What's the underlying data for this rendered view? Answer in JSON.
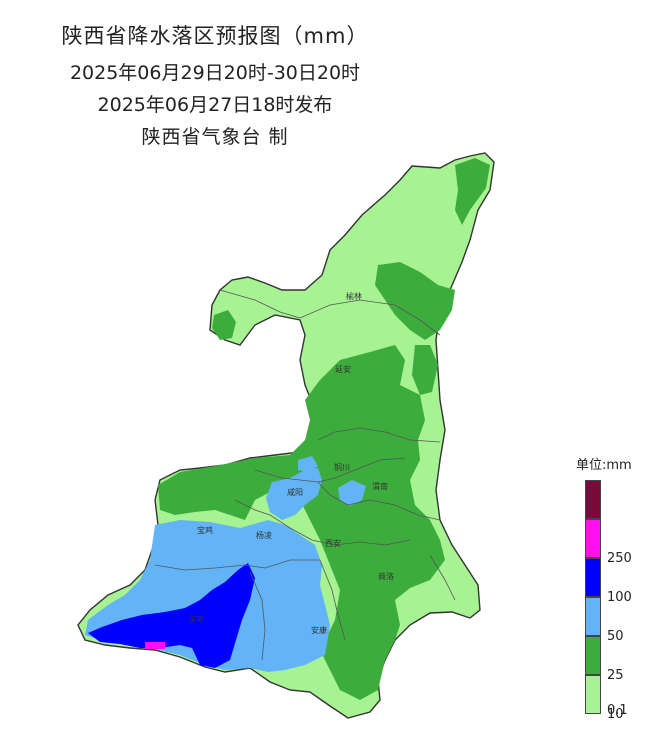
{
  "title": {
    "main": "陕西省降水落区预报图（mm）",
    "period": "2025年06月29日20时-30日20时",
    "issued": "2025年06月27日18时发布",
    "agency": "陕西省气象台 制"
  },
  "cities": {
    "yulin": "榆林",
    "yanan": "延安",
    "tongchuan": "铜川",
    "weinan": "渭南",
    "xianyang": "咸阳",
    "baoji": "宝鸡",
    "yangling": "杨凌",
    "xian": "西安",
    "shangluo": "商洛",
    "hanzhong": "汉中",
    "ankang": "安康"
  },
  "legend": {
    "title": "单位:mm",
    "bands": [
      {
        "label": "",
        "color": "#7a0a3c"
      },
      {
        "label": "250",
        "color": "#ff10ee"
      },
      {
        "label": "100",
        "color": "#0000ff"
      },
      {
        "label": "50",
        "color": "#62b4f6"
      },
      {
        "label": "25",
        "color": "#3cad3c"
      },
      {
        "label": "10",
        "color": "#a7f293"
      }
    ],
    "bottom_label": "0.1"
  },
  "colors": {
    "light_green": "#a7f293",
    "green": "#3cad3c",
    "blue": "#62b4f6",
    "dark_blue": "#0000ff",
    "magenta": "#ff10ee",
    "maroon": "#7a0a3c"
  }
}
